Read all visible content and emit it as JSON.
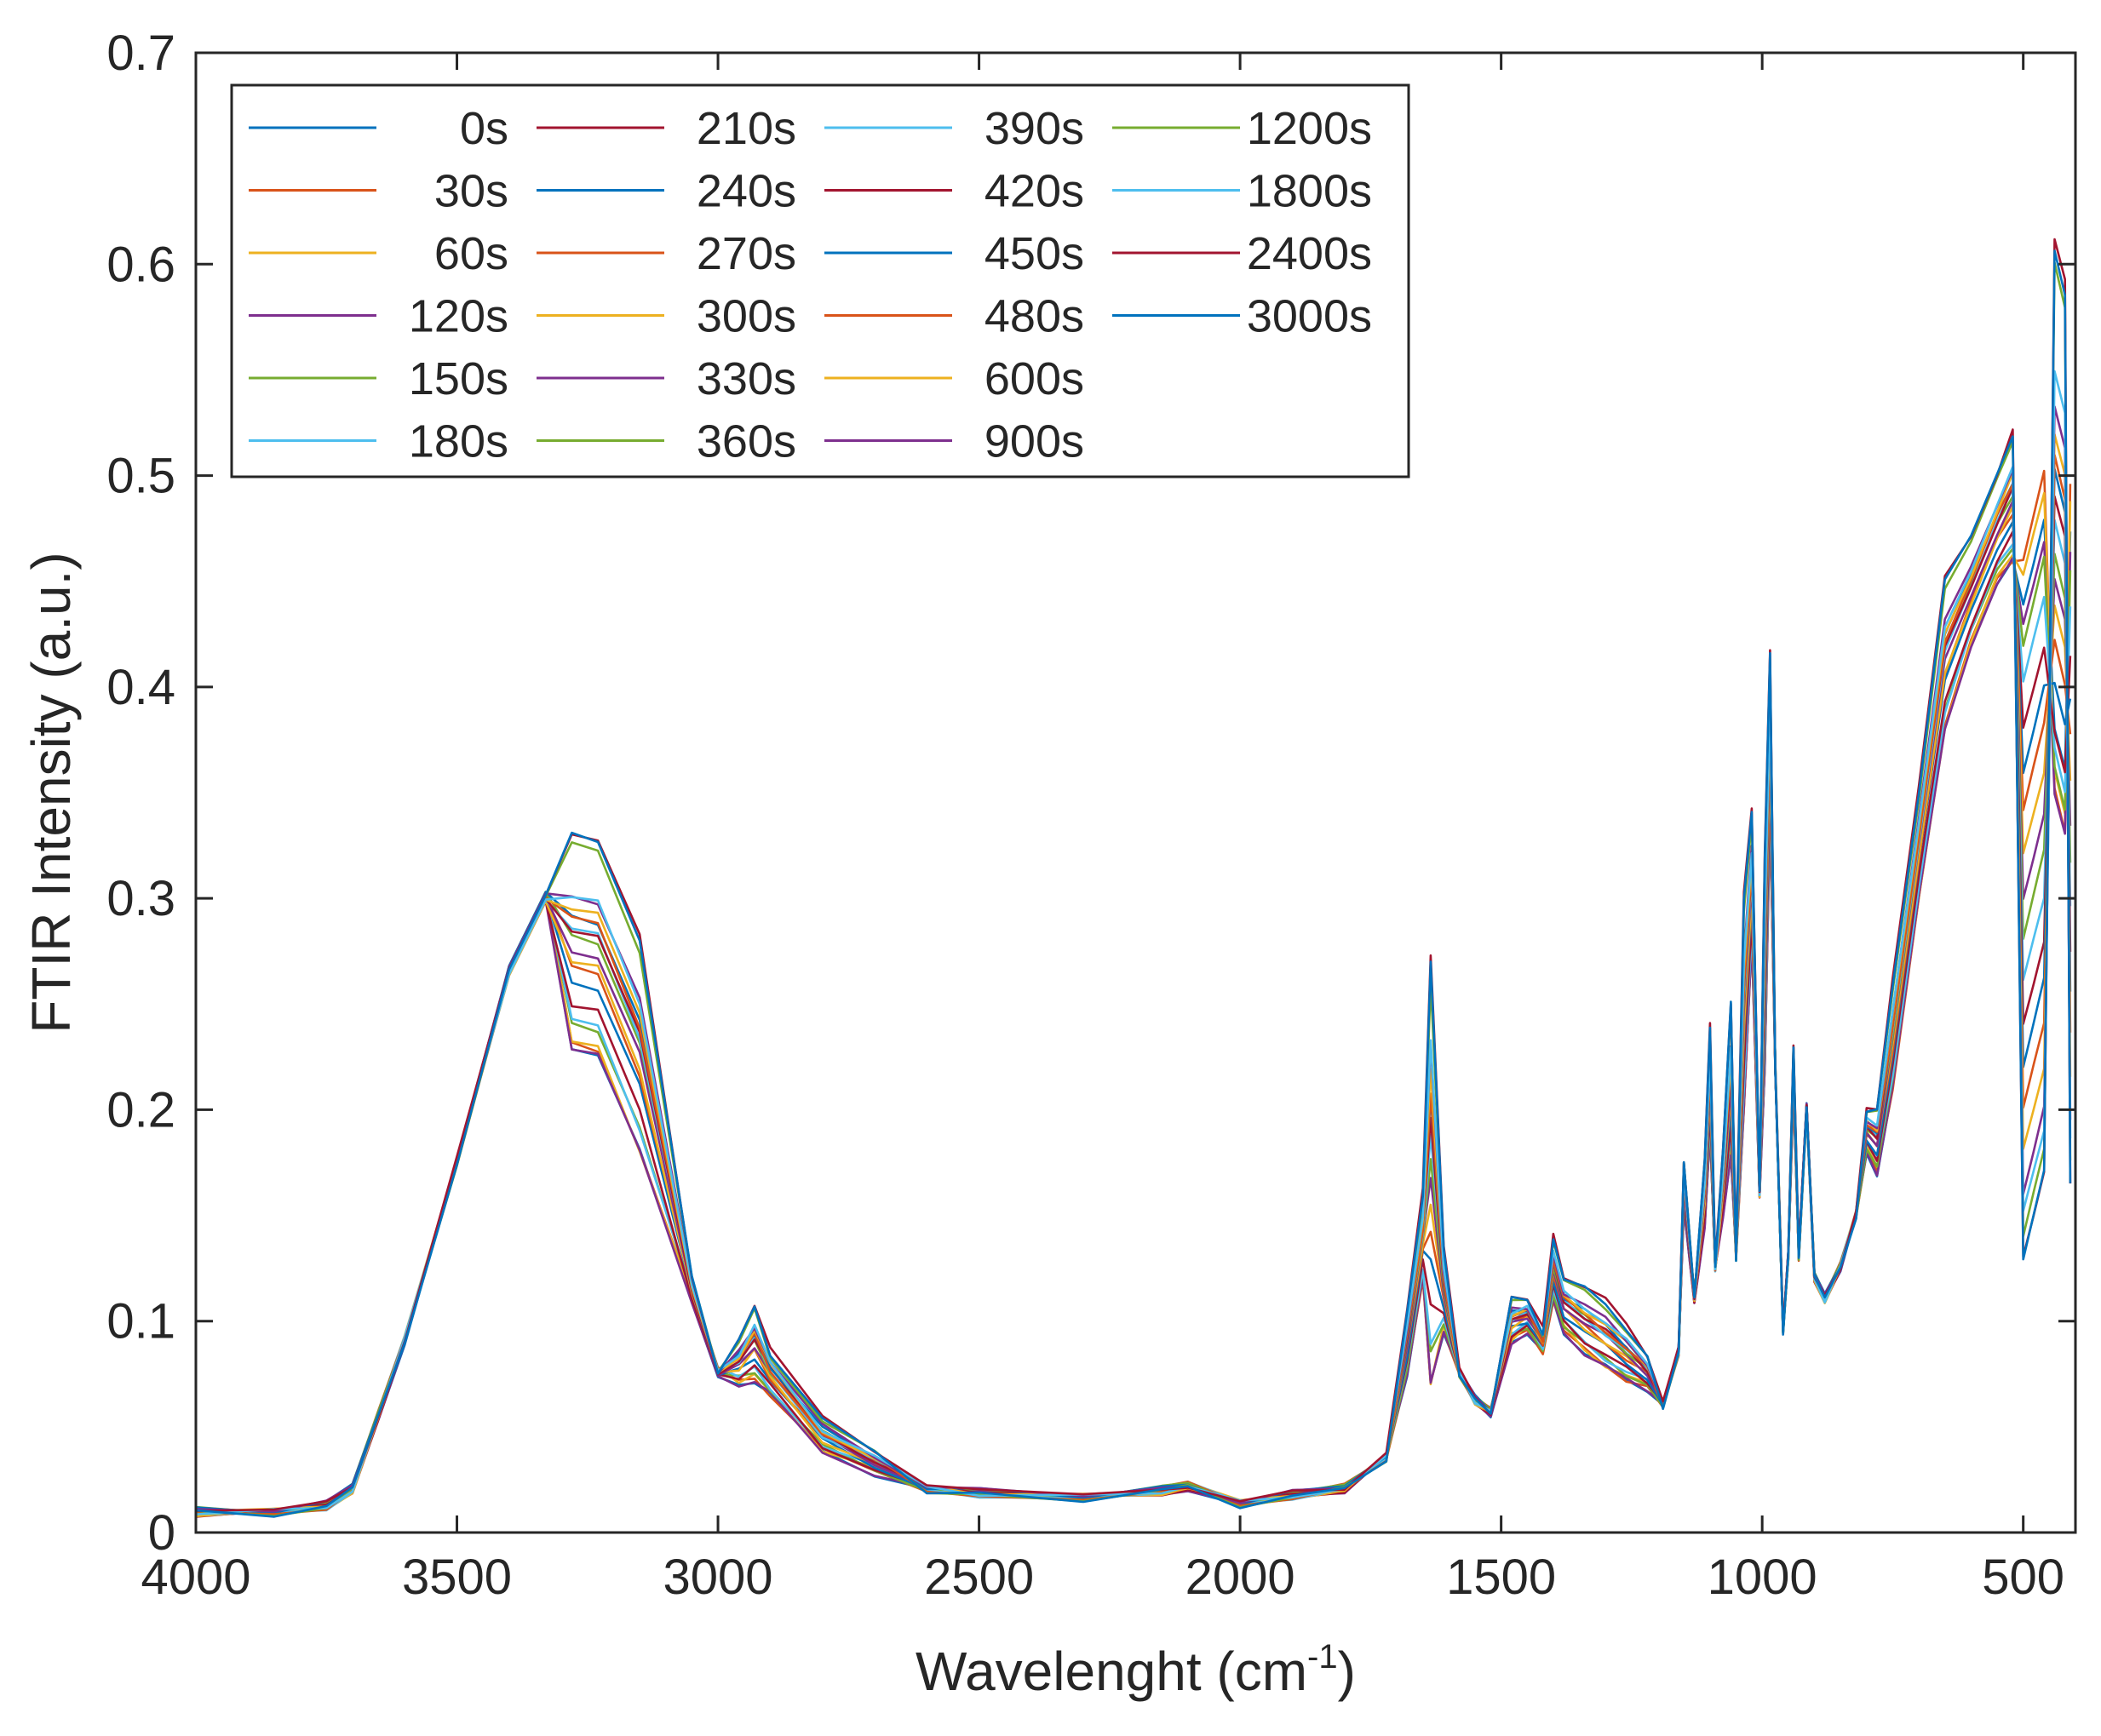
{
  "chart_data": {
    "type": "line",
    "title": "",
    "xlabel": "Wavelenght (cm",
    "xlabel_superscript": "-1",
    "xlabel_suffix": ")",
    "ylabel": "FTIR Intensity (a.u.)",
    "xlim": [
      4000,
      400
    ],
    "x_reversed": true,
    "ylim": [
      0,
      0.7
    ],
    "xticks": [
      "4000",
      "3500",
      "3000",
      "2500",
      "2000",
      "1500",
      "1000",
      "500"
    ],
    "xtick_values": [
      4000,
      3500,
      3000,
      2500,
      2000,
      1500,
      1000,
      500
    ],
    "yticks": [
      "0",
      "0.1",
      "0.2",
      "0.3",
      "0.4",
      "0.5",
      "0.6",
      "0.7"
    ],
    "ytick_values": [
      0,
      0.1,
      0.2,
      0.3,
      0.4,
      0.5,
      0.6,
      0.7
    ],
    "grid": false,
    "legend_position": "top-left",
    "legend_columns": 4,
    "colors": [
      "#0072BD",
      "#D95319",
      "#EDB120",
      "#7E2F8E",
      "#77AC30",
      "#4DBEEE",
      "#A2142F"
    ],
    "template_x": [
      4000,
      3850,
      3750,
      3700,
      3650,
      3600,
      3500,
      3400,
      3330,
      3280,
      3230,
      3150,
      3050,
      3000,
      2960,
      2930,
      2900,
      2800,
      2700,
      2600,
      2500,
      2300,
      2150,
      2100,
      2000,
      1900,
      1800,
      1720,
      1680,
      1650,
      1635,
      1610,
      1580,
      1550,
      1520,
      1480,
      1450,
      1420,
      1400,
      1380,
      1340,
      1300,
      1260,
      1220,
      1190,
      1160,
      1150,
      1130,
      1110,
      1100,
      1090,
      1075,
      1060,
      1050,
      1035,
      1020,
      1005,
      995,
      985,
      975,
      960,
      950,
      940,
      930,
      915,
      900,
      880,
      850,
      820,
      800,
      780,
      750,
      700,
      650,
      600,
      550,
      520,
      500,
      480,
      460,
      440,
      420,
      410
    ],
    "series": [
      {
        "name": "0s",
        "p": [
          0.23,
          0.16,
          0.48,
          0.36
        ]
      },
      {
        "name": "30s",
        "p": [
          0.23,
          0.16,
          0.5,
          0.33
        ]
      },
      {
        "name": "60s",
        "p": [
          0.23,
          0.16,
          0.49,
          0.34
        ]
      },
      {
        "name": "120s",
        "p": [
          0.23,
          0.16,
          0.47,
          0.33
        ]
      },
      {
        "name": "150s",
        "p": [
          0.24,
          0.165,
          0.46,
          0.34
        ]
      },
      {
        "name": "180s",
        "p": [
          0.24,
          0.17,
          0.44,
          0.35
        ]
      },
      {
        "name": "210s",
        "p": [
          0.25,
          0.18,
          0.42,
          0.36
        ]
      },
      {
        "name": "240s",
        "p": [
          0.26,
          0.19,
          0.4,
          0.38
        ]
      },
      {
        "name": "270s",
        "p": [
          0.265,
          0.2,
          0.38,
          0.4
        ]
      },
      {
        "name": "300s",
        "p": [
          0.27,
          0.21,
          0.36,
          0.42
        ]
      },
      {
        "name": "330s",
        "p": [
          0.275,
          0.215,
          0.34,
          0.43
        ]
      },
      {
        "name": "360s",
        "p": [
          0.28,
          0.22,
          0.32,
          0.44
        ]
      },
      {
        "name": "390s",
        "p": [
          0.285,
          0.23,
          0.3,
          0.46
        ]
      },
      {
        "name": "420s",
        "p": [
          0.285,
          0.235,
          0.28,
          0.47
        ]
      },
      {
        "name": "450s",
        "p": [
          0.29,
          0.24,
          0.26,
          0.48
        ]
      },
      {
        "name": "480s",
        "p": [
          0.29,
          0.245,
          0.24,
          0.49
        ]
      },
      {
        "name": "600s",
        "p": [
          0.295,
          0.25,
          0.22,
          0.5
        ]
      },
      {
        "name": "900s",
        "p": [
          0.3,
          0.255,
          0.2,
          0.51
        ]
      },
      {
        "name": "1200s",
        "p": [
          0.325,
          0.265,
          0.18,
          0.58
        ]
      },
      {
        "name": "1800s",
        "p": [
          0.3,
          0.26,
          0.19,
          0.53
        ]
      },
      {
        "name": "2400s",
        "p": [
          0.33,
          0.27,
          0.17,
          0.59
        ]
      },
      {
        "name": "3000s",
        "p": [
          0.33,
          0.27,
          0.17,
          0.585
        ]
      }
    ]
  }
}
